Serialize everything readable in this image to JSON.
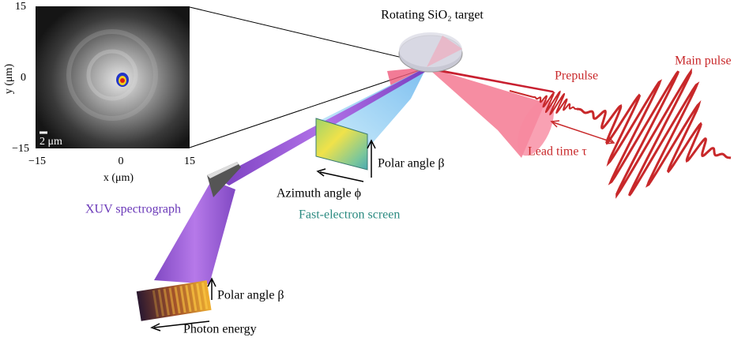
{
  "inset": {
    "yticks": [
      "15",
      "0",
      "−15"
    ],
    "xticks": [
      "−15",
      "0",
      "15"
    ],
    "ylabel": "y (μm)",
    "xlabel": "x (μm)",
    "scalebar": "2 μm"
  },
  "labels": {
    "target": "Rotating SiO₂ target",
    "prepulse": "Prepulse",
    "main_pulse": "Main pulse",
    "lead_time": "Lead time τ",
    "screen_polar": "Polar angle β",
    "azimuth": "Azimuth angle ϕ",
    "screen": "Fast-electron screen",
    "spectrograph": "XUV spectrograph",
    "spec_polar": "Polar angle β",
    "photon_energy": "Photon energy"
  }
}
